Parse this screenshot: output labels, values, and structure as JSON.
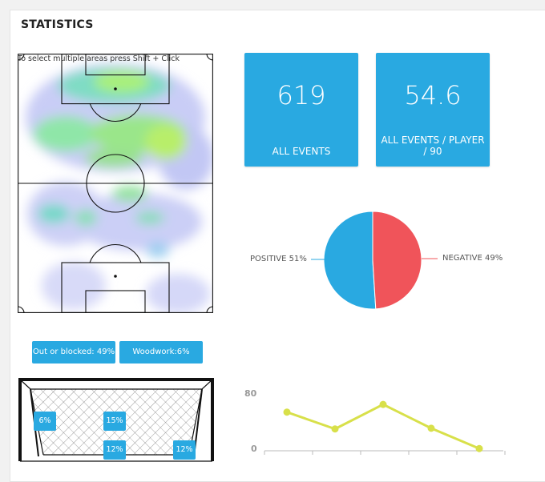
{
  "title": "STATISTICS",
  "heatmap": {
    "hint": "To select multiple areas press Shift + Click"
  },
  "cards": [
    {
      "value": "619",
      "label": "ALL EVENTS"
    },
    {
      "value": "54.6",
      "label": "ALL EVENTS / PLAYER / 90"
    }
  ],
  "pie": {
    "positive_label": "POSITIVE 51%",
    "negative_label": "NEGATIVE 49%",
    "positive_value": 51,
    "negative_value": 49,
    "positive_color": "#29a9e1",
    "negative_color": "#f0545a"
  },
  "shot_filters": [
    {
      "label": "Out or blocked: 49%"
    },
    {
      "label": "Woodwork:6%"
    }
  ],
  "goal_zones": [
    {
      "label": "6%"
    },
    {
      "label": "15%"
    },
    {
      "label": "12%"
    },
    {
      "label": "12%"
    }
  ],
  "chart_data": {
    "type": "line",
    "y_ticks": [
      "80",
      "0"
    ],
    "ylim": [
      0,
      80
    ],
    "x": [
      1,
      2,
      3,
      4,
      5
    ],
    "series": [
      {
        "values": [
          54,
          30,
          65,
          31,
          2
        ],
        "color": "#d8e04a"
      }
    ]
  },
  "colors": {
    "accent": "#29a9e1"
  }
}
